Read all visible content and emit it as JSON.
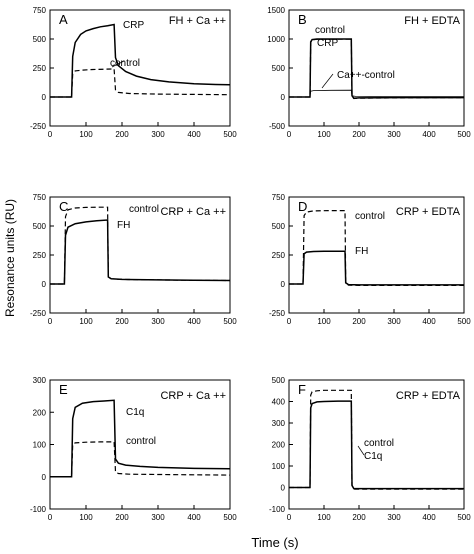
{
  "figure": {
    "xlabel": "Time (s)",
    "ylabel": "Resonance units (RU)"
  },
  "chart_data": [
    {
      "type": "line",
      "panel": "A",
      "title": "FH + Ca ++",
      "xlim": [
        0,
        500
      ],
      "ylim": [
        -250,
        750
      ],
      "xticks": [
        0,
        100,
        200,
        300,
        400,
        500
      ],
      "yticks": [
        -250,
        0,
        250,
        500,
        750
      ],
      "series": [
        {
          "name": "CRP",
          "style": "solid",
          "x": [
            0,
            60,
            63,
            70,
            85,
            100,
            120,
            140,
            160,
            178,
            182,
            190,
            210,
            240,
            280,
            330,
            400,
            460,
            500
          ],
          "y": [
            0,
            0,
            350,
            470,
            540,
            570,
            590,
            605,
            615,
            625,
            340,
            270,
            220,
            180,
            150,
            130,
            115,
            108,
            105
          ]
        },
        {
          "name": "control",
          "style": "dashed",
          "x": [
            0,
            60,
            63,
            70,
            90,
            120,
            150,
            178,
            182,
            190,
            220,
            300,
            400,
            500
          ],
          "y": [
            0,
            0,
            200,
            225,
            232,
            237,
            240,
            242,
            60,
            40,
            30,
            25,
            22,
            20
          ]
        }
      ],
      "annotations": [
        "CRP",
        "control"
      ]
    },
    {
      "type": "line",
      "panel": "B",
      "title": "FH + EDTA",
      "xlim": [
        0,
        500
      ],
      "ylim": [
        -500,
        1500
      ],
      "xticks": [
        0,
        100,
        200,
        300,
        400,
        500
      ],
      "yticks": [
        -500,
        0,
        500,
        1000,
        1500
      ],
      "series": [
        {
          "name": "control",
          "style": "solid",
          "x": [
            0,
            60,
            62,
            66,
            80,
            100,
            140,
            178,
            180,
            185,
            200,
            300,
            400,
            500
          ],
          "y": [
            0,
            0,
            950,
            990,
            1000,
            1000,
            1000,
            1000,
            20,
            -20,
            -15,
            -10,
            -10,
            -10
          ]
        },
        {
          "name": "CRP",
          "style": "dashed",
          "x": [
            0,
            60,
            62,
            66,
            80,
            100,
            140,
            178,
            180,
            185,
            200,
            300,
            400,
            500
          ],
          "y": [
            0,
            0,
            940,
            985,
            995,
            998,
            998,
            998,
            20,
            -25,
            -20,
            -15,
            -12,
            -12
          ]
        },
        {
          "name": "Ca++-control",
          "style": "solid-thin",
          "x": [
            0,
            60,
            62,
            70,
            120,
            178,
            180,
            190,
            300,
            500
          ],
          "y": [
            0,
            0,
            100,
            110,
            115,
            118,
            20,
            10,
            5,
            5
          ]
        }
      ],
      "annotations": [
        "control",
        "CRP",
        "Ca++-control"
      ]
    },
    {
      "type": "line",
      "panel": "C",
      "title": "CRP + Ca ++",
      "xlim": [
        0,
        500
      ],
      "ylim": [
        -250,
        750
      ],
      "xticks": [
        0,
        100,
        200,
        300,
        400,
        500
      ],
      "yticks": [
        -250,
        0,
        250,
        500,
        750
      ],
      "series": [
        {
          "name": "control",
          "style": "dashed",
          "x": [
            0,
            40,
            43,
            50,
            70,
            100,
            130,
            160,
            162,
            170,
            200,
            300,
            400,
            500
          ],
          "y": [
            0,
            0,
            580,
            640,
            655,
            660,
            662,
            662,
            60,
            45,
            40,
            35,
            32,
            30
          ]
        },
        {
          "name": "FH",
          "style": "solid",
          "x": [
            0,
            40,
            43,
            50,
            70,
            100,
            130,
            160,
            162,
            170,
            200,
            300,
            400,
            500
          ],
          "y": [
            0,
            0,
            420,
            490,
            520,
            535,
            545,
            552,
            60,
            45,
            40,
            35,
            32,
            30
          ]
        }
      ],
      "annotations": [
        "control",
        "FH"
      ]
    },
    {
      "type": "line",
      "panel": "D",
      "title": "CRP + EDTA",
      "xlim": [
        0,
        500
      ],
      "ylim": [
        -250,
        750
      ],
      "xticks": [
        0,
        100,
        200,
        300,
        400,
        500
      ],
      "yticks": [
        -250,
        0,
        250,
        500,
        750
      ],
      "series": [
        {
          "name": "control",
          "style": "dashed",
          "x": [
            0,
            40,
            43,
            50,
            70,
            100,
            130,
            160,
            162,
            170,
            200,
            300,
            400,
            500
          ],
          "y": [
            0,
            0,
            590,
            620,
            630,
            632,
            633,
            633,
            10,
            -10,
            -12,
            -12,
            -12,
            -12
          ]
        },
        {
          "name": "FH",
          "style": "solid",
          "x": [
            0,
            40,
            43,
            50,
            70,
            100,
            130,
            160,
            162,
            170,
            200,
            300,
            400,
            500
          ],
          "y": [
            0,
            0,
            260,
            275,
            280,
            282,
            283,
            283,
            10,
            -5,
            -8,
            -8,
            -8,
            -8
          ]
        }
      ],
      "annotations": [
        "control",
        "FH"
      ]
    },
    {
      "type": "line",
      "panel": "E",
      "title": "CRP + Ca ++",
      "xlim": [
        0,
        500
      ],
      "ylim": [
        -100,
        300
      ],
      "xticks": [
        0,
        100,
        200,
        300,
        400,
        500
      ],
      "yticks": [
        -100,
        0,
        100,
        200,
        300
      ],
      "series": [
        {
          "name": "C1q",
          "style": "solid",
          "x": [
            0,
            60,
            63,
            70,
            90,
            120,
            150,
            178,
            182,
            190,
            210,
            250,
            300,
            400,
            500
          ],
          "y": [
            0,
            0,
            180,
            215,
            228,
            233,
            235,
            237,
            55,
            42,
            36,
            32,
            29,
            26,
            25
          ]
        },
        {
          "name": "control",
          "style": "dashed",
          "x": [
            0,
            60,
            63,
            70,
            100,
            140,
            178,
            182,
            190,
            220,
            300,
            400,
            500
          ],
          "y": [
            0,
            0,
            100,
            105,
            107,
            108,
            108,
            15,
            10,
            8,
            7,
            6,
            5
          ]
        }
      ],
      "annotations": [
        "C1q",
        "control"
      ]
    },
    {
      "type": "line",
      "panel": "F",
      "title": "CRP + EDTA",
      "xlim": [
        0,
        500
      ],
      "ylim": [
        -100,
        500
      ],
      "xticks": [
        0,
        100,
        200,
        300,
        400,
        500
      ],
      "yticks": [
        -100,
        0,
        100,
        200,
        300,
        400,
        500
      ],
      "series": [
        {
          "name": "control",
          "style": "dashed",
          "x": [
            0,
            60,
            62,
            66,
            80,
            100,
            140,
            178,
            180,
            185,
            200,
            300,
            400,
            500
          ],
          "y": [
            0,
            0,
            430,
            445,
            450,
            452,
            452,
            452,
            10,
            -8,
            -8,
            -8,
            -8,
            -8
          ]
        },
        {
          "name": "C1q",
          "style": "solid",
          "x": [
            0,
            60,
            62,
            66,
            80,
            100,
            140,
            178,
            180,
            185,
            200,
            300,
            400,
            500
          ],
          "y": [
            0,
            0,
            370,
            390,
            398,
            400,
            402,
            402,
            10,
            -5,
            -5,
            -5,
            -5,
            -5
          ]
        }
      ],
      "annotations": [
        "control",
        "C1q"
      ]
    }
  ]
}
